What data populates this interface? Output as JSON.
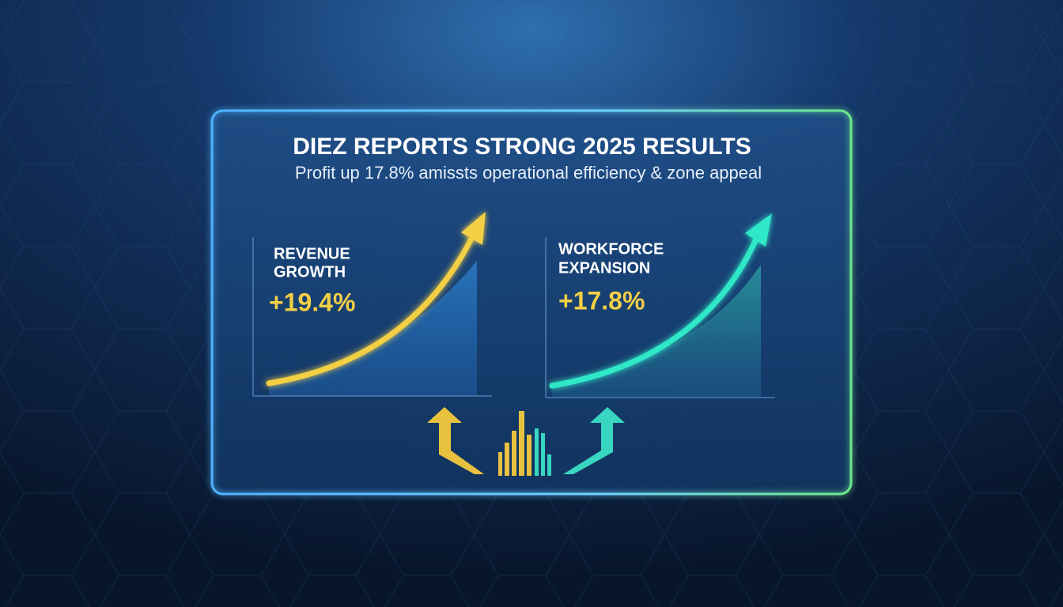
{
  "header": {
    "title": "DIEZ REPORTS STRONG 2025 RESULTS",
    "subtitle": "Profit up 17.8% amissts operational efficiency & zone appeal"
  },
  "panels": [
    {
      "label": [
        "REVENUE",
        "GROWTH"
      ],
      "value": "+19.4%"
    },
    {
      "label": [
        "WORKFORCE",
        "EXPANSION"
      ],
      "value": "+17.8%"
    }
  ]
}
